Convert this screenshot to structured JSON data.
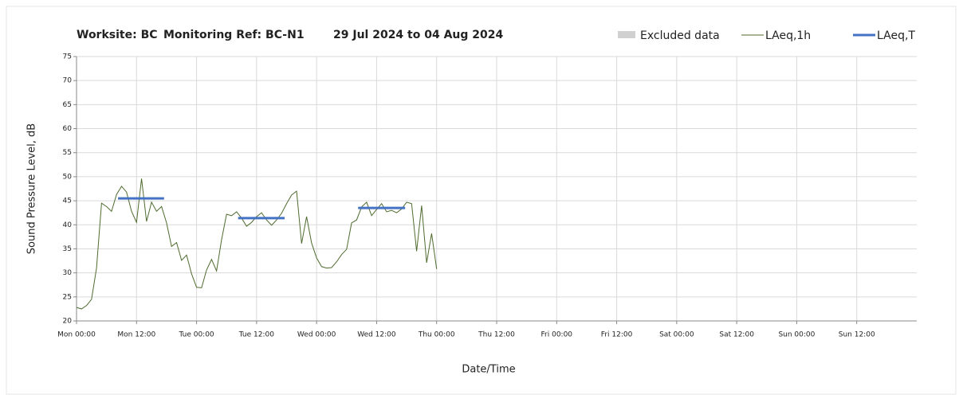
{
  "chart_data": {
    "type": "line",
    "title_parts": [
      "Worksite: BC",
      "Monitoring Ref: BC-N1",
      "29 Jul 2024 to 04 Aug 2024"
    ],
    "y_label": "Sound Pressure Level, dB",
    "x_label": "Date/Time",
    "xlim": [
      0,
      168
    ],
    "xticks": [
      {
        "value": 0,
        "label": "Mon 00:00"
      },
      {
        "value": 12,
        "label": "Mon 12:00"
      },
      {
        "value": 24,
        "label": "Tue 00:00"
      },
      {
        "value": 36,
        "label": "Tue 12:00"
      },
      {
        "value": 48,
        "label": "Wed 00:00"
      },
      {
        "value": 60,
        "label": "Wed 12:00"
      },
      {
        "value": 72,
        "label": "Thu 00:00"
      },
      {
        "value": 84,
        "label": "Thu 12:00"
      },
      {
        "value": 96,
        "label": "Fri 00:00"
      },
      {
        "value": 108,
        "label": "Fri 12:00"
      },
      {
        "value": 120,
        "label": "Sat 00:00"
      },
      {
        "value": 132,
        "label": "Sat 12:00"
      },
      {
        "value": 144,
        "label": "Sun 00:00"
      },
      {
        "value": 156,
        "label": "Sun 12:00"
      }
    ],
    "ylim": [
      20,
      75
    ],
    "yticks": [
      20,
      25,
      30,
      35,
      40,
      45,
      50,
      55,
      60,
      65,
      70,
      75
    ],
    "grid": true,
    "series": [
      {
        "name": "Excluded data",
        "color": "#d0d0d0",
        "x": [],
        "values": []
      },
      {
        "name": "LAeq,1h",
        "color": "#4f6b2e",
        "x": [
          0,
          1,
          2,
          3,
          4,
          5,
          6,
          7,
          8,
          9,
          10,
          11,
          12,
          13,
          14,
          15,
          16,
          17,
          18,
          19,
          20,
          21,
          22,
          23,
          24,
          25,
          26,
          27,
          28,
          29,
          30,
          31,
          32,
          33,
          34,
          35,
          36,
          37,
          38,
          39,
          40,
          41,
          42,
          43,
          44,
          45,
          46,
          47,
          48,
          49,
          50,
          51,
          52,
          53,
          54,
          55,
          56,
          57,
          58,
          59,
          60,
          61,
          62,
          63,
          64,
          65,
          66,
          67,
          68,
          69,
          70,
          71,
          72
        ],
        "values": [
          22.8,
          22.5,
          23.2,
          24.5,
          31,
          44.5,
          43.8,
          42.8,
          46.3,
          48,
          46.8,
          42.8,
          40.5,
          49.6,
          40.7,
          44.7,
          42.8,
          43.8,
          40.4,
          35.5,
          36.3,
          32.6,
          33.7,
          29.8,
          27,
          26.9,
          30.6,
          32.8,
          30.4,
          36.9,
          42.2,
          41.9,
          42.7,
          41.4,
          39.7,
          40.5,
          41.7,
          42.5,
          41,
          39.9,
          41,
          42.4,
          44.4,
          46.2,
          47,
          36.1,
          41.7,
          36.2,
          33.1,
          31.3,
          31,
          31.1,
          32.3,
          33.8,
          34.9,
          40.4,
          41,
          43.7,
          44.7,
          41.9,
          43.2,
          44.4,
          42.7,
          43,
          42.5,
          43.3,
          44.7,
          44.4,
          34.5,
          44,
          32.1,
          38.2,
          30.8
        ]
      },
      {
        "name": "LAeq,T",
        "color": "#4472c4",
        "x": [
          8.3,
          17.5,
          null,
          32.3,
          41.6,
          null,
          56.3,
          65.7
        ],
        "values": [
          45.5,
          45.5,
          null,
          41.4,
          41.4,
          null,
          43.5,
          43.5
        ]
      }
    ]
  }
}
